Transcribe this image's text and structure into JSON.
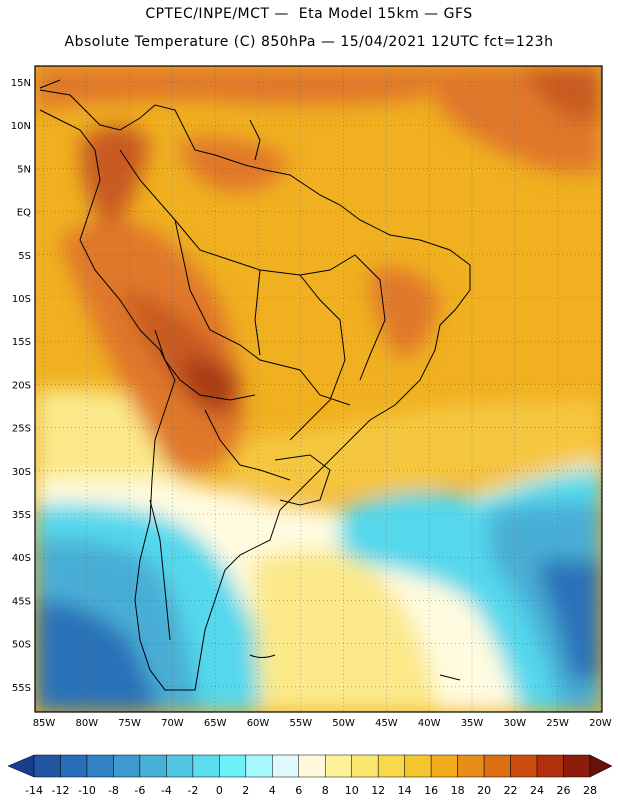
{
  "header": {
    "line1": "CPTEC/INPE/MCT —  Eta Model 15km — GFS",
    "line2": "Absolute Temperature (C) 850hPa — 15/04/2021 12UTC fct=123h"
  },
  "map": {
    "lat_labels": [
      "15N",
      "10N",
      "5N",
      "EQ",
      "5S",
      "10S",
      "15S",
      "20S",
      "25S",
      "30S",
      "35S",
      "40S",
      "45S",
      "50S",
      "55S"
    ],
    "lon_labels": [
      "85W",
      "80W",
      "75W",
      "70W",
      "65W",
      "60W",
      "55W",
      "50W",
      "45W",
      "40W",
      "35W",
      "30W",
      "25W",
      "20W"
    ],
    "grid": "dotted",
    "colors": {
      "warm_core": "#e0782a",
      "hot": "#c85a20",
      "very_hot": "#a83a14",
      "background_warm": "#f0b020",
      "mild": "#f5c740",
      "cool_yellow": "#fbe98a",
      "pale": "#fffbe0",
      "cyan_light": "#aef0f8",
      "cyan": "#55d8ec",
      "blue_light": "#4aaed6",
      "blue": "#2a72b8",
      "blue_dark": "#1c4f9c",
      "coast": "#000000"
    }
  },
  "colorbar": {
    "labels": [
      "-14",
      "-12",
      "-10",
      "-8",
      "-6",
      "-4",
      "-2",
      "0",
      "2",
      "4",
      "6",
      "8",
      "10",
      "12",
      "14",
      "16",
      "18",
      "20",
      "22",
      "24",
      "26",
      "28"
    ],
    "colors": [
      "#1a3d8f",
      "#2156a3",
      "#2a6db8",
      "#3383c4",
      "#3c9ace",
      "#47b1d8",
      "#52c7e3",
      "#5ddcee",
      "#6ef0f8",
      "#a8f7fb",
      "#dff9fd",
      "#fff8dc",
      "#fdf29a",
      "#fbe66e",
      "#f9d84a",
      "#f5c52e",
      "#f0ac1c",
      "#e78e1a",
      "#de6e14",
      "#cc4c10",
      "#b0300d",
      "#8c1c0c",
      "#6a100c"
    ]
  }
}
